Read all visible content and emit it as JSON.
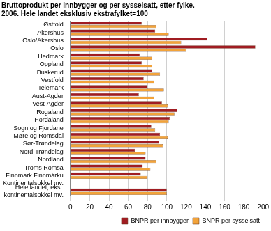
{
  "chart_data": {
    "type": "bar",
    "orientation": "horizontal",
    "title": "Bruttoprodukt per innbygger og per sysselsatt, etter fylke. 2006. Hele landet eksklusiv ekstrafylket=100",
    "categories": [
      "Østfold",
      "Akershus",
      "Oslo/Akershus",
      "Oslo",
      "Hedmark",
      "Oppland",
      "Buskerud",
      "Vestfold",
      "Telemark",
      "Aust-Agder",
      "Vest-Agder",
      "Rogaland",
      "Hordaland",
      "Sogn og Fjordane",
      "Møre og Romsdal",
      "Sør-Trøndelag",
      "Nord-Trøndelag",
      "Nordland",
      "Troms Romsa",
      "Finnmark Finnmárku",
      "Kontinentalsokkel mv.",
      "Hele landet, eksl. kontinentalsokkel mv."
    ],
    "series": [
      {
        "name": "BNPR per innbygger",
        "color": "#a01c22",
        "values": [
          74,
          88,
          142,
          192,
          72,
          74,
          85,
          76,
          80,
          71,
          95,
          111,
          103,
          84,
          93,
          92,
          67,
          78,
          75,
          73,
          null,
          100
        ]
      },
      {
        "name": "BNPR per sysselsatt",
        "color": "#f2a33a",
        "values": [
          89,
          102,
          115,
          120,
          85,
          85,
          93,
          87,
          97,
          87,
          101,
          108,
          102,
          88,
          101,
          96,
          78,
          89,
          83,
          80,
          null,
          100
        ]
      }
    ],
    "xlim": [
      0,
      200
    ],
    "xticks": [
      0,
      20,
      40,
      60,
      80,
      100,
      120,
      140,
      160,
      180,
      200
    ],
    "grid": true,
    "legend": "bottom"
  }
}
